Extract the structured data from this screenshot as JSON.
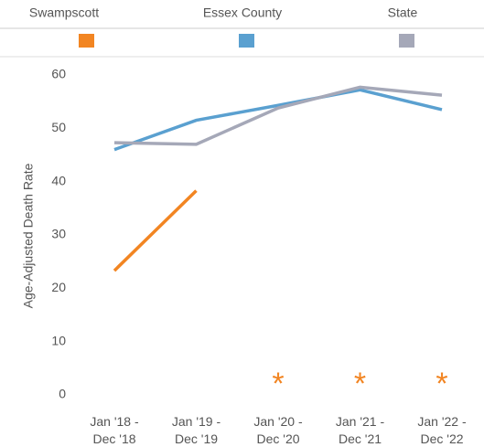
{
  "chart_data": {
    "type": "line",
    "y_label": "Age-Adjusted Death Rate",
    "categories": [
      "Jan '18 -\nDec '18",
      "Jan '19 -\nDec '19",
      "Jan '20 -\nDec '20",
      "Jan '21 -\nDec '21",
      "Jan '22 -\nDec '22"
    ],
    "series": [
      {
        "name": "Swampscott",
        "color": "#f28522",
        "values": [
          23.3,
          38.3,
          null,
          null,
          null
        ],
        "value_labels": [
          null,
          null,
          "*",
          "*",
          "*"
        ]
      },
      {
        "name": "Essex County",
        "color": "#5aa0d0",
        "values": [
          46,
          51.5,
          54.3,
          57.2,
          53.5
        ]
      },
      {
        "name": "State",
        "color": "#a5a8b8",
        "values": [
          47.3,
          47,
          53.8,
          57.7,
          56.2
        ]
      }
    ],
    "ylim": [
      0,
      60
    ],
    "yticks": [
      0,
      10,
      20,
      30,
      40,
      50,
      60
    ],
    "grid": false
  }
}
